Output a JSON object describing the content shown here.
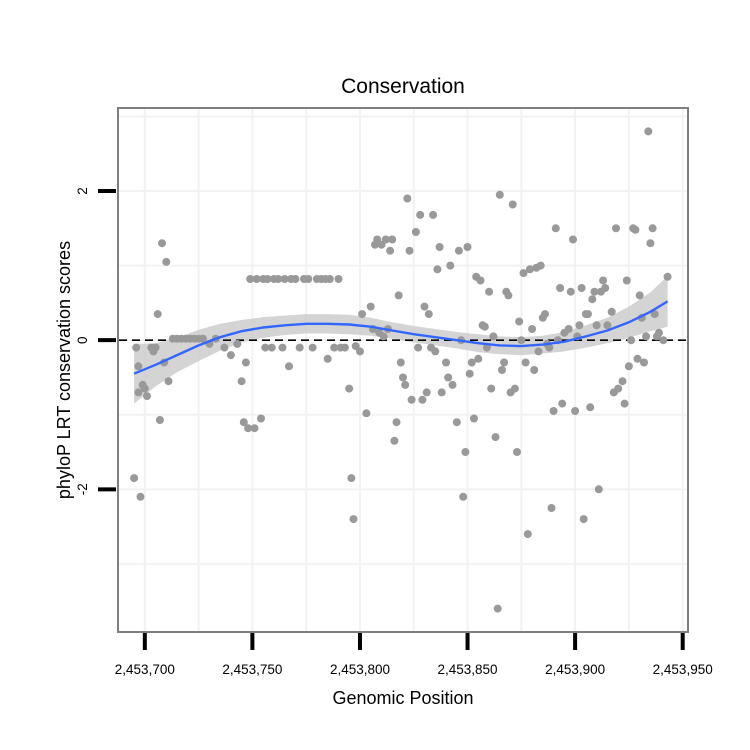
{
  "chart_data": {
    "type": "scatter",
    "title": "Conservation",
    "xlabel": "Genomic Position",
    "ylabel": "phyloP LRT conservation scores",
    "xlim": [
      2453688,
      2453952
    ],
    "ylim": [
      -3.9,
      3.1
    ],
    "xticks": [
      2453700,
      2453750,
      2453800,
      2453850,
      2453900,
      2453950
    ],
    "xtick_labels": [
      "2,453,700",
      "2,453,750",
      "2,453,800",
      "2,453,850",
      "2,453,900",
      "2,453,950"
    ],
    "yticks": [
      -2,
      0,
      2
    ],
    "ytick_labels": [
      "-2",
      "0",
      "2"
    ],
    "grid": true,
    "reference_line": {
      "y": 0,
      "style": "dashed"
    },
    "colors": {
      "points": "#999999",
      "smooth": "#3366FF",
      "ribbon": "#CCCCCC",
      "grid": "#F2F2F2",
      "border": "#7F7F7F"
    },
    "points": [
      [
        2453695,
        -1.85
      ],
      [
        2453696,
        -0.1
      ],
      [
        2453697,
        -0.35
      ],
      [
        2453697,
        -0.7
      ],
      [
        2453698,
        -2.1
      ],
      [
        2453699,
        -0.6
      ],
      [
        2453700,
        -0.65
      ],
      [
        2453701,
        -0.75
      ],
      [
        2453703,
        -0.1
      ],
      [
        2453704,
        -0.15
      ],
      [
        2453705,
        -0.1
      ],
      [
        2453706,
        0.35
      ],
      [
        2453707,
        -1.07
      ],
      [
        2453708,
        1.3
      ],
      [
        2453709,
        -0.3
      ],
      [
        2453710,
        1.05
      ],
      [
        2453711,
        -0.55
      ],
      [
        2453713,
        0.02
      ],
      [
        2453715,
        0.02
      ],
      [
        2453717,
        0.02
      ],
      [
        2453719,
        0.02
      ],
      [
        2453721,
        0.02
      ],
      [
        2453723,
        0.02
      ],
      [
        2453725,
        0.02
      ],
      [
        2453727,
        0.02
      ],
      [
        2453730,
        -0.05
      ],
      [
        2453733,
        0.02
      ],
      [
        2453737,
        -0.1
      ],
      [
        2453740,
        -0.2
      ],
      [
        2453743,
        -0.05
      ],
      [
        2453745,
        -0.55
      ],
      [
        2453746,
        -1.1
      ],
      [
        2453747,
        -0.3
      ],
      [
        2453748,
        -1.18
      ],
      [
        2453749,
        0.82
      ],
      [
        2453751,
        -1.18
      ],
      [
        2453752,
        0.82
      ],
      [
        2453754,
        -1.05
      ],
      [
        2453755,
        0.82
      ],
      [
        2453756,
        -0.1
      ],
      [
        2453757,
        0.82
      ],
      [
        2453759,
        -0.1
      ],
      [
        2453760,
        0.82
      ],
      [
        2453762,
        0.82
      ],
      [
        2453764,
        -0.1
      ],
      [
        2453765,
        0.82
      ],
      [
        2453767,
        -0.35
      ],
      [
        2453768,
        0.82
      ],
      [
        2453770,
        0.82
      ],
      [
        2453772,
        -0.1
      ],
      [
        2453774,
        0.82
      ],
      [
        2453776,
        0.82
      ],
      [
        2453778,
        -0.1
      ],
      [
        2453780,
        0.82
      ],
      [
        2453782,
        0.82
      ],
      [
        2453784,
        0.82
      ],
      [
        2453785,
        -0.25
      ],
      [
        2453786,
        0.82
      ],
      [
        2453788,
        -0.1
      ],
      [
        2453790,
        0.82
      ],
      [
        2453791,
        -0.1
      ],
      [
        2453793,
        -0.1
      ],
      [
        2453795,
        -0.65
      ],
      [
        2453796,
        -1.85
      ],
      [
        2453797,
        -2.4
      ],
      [
        2453798,
        -0.08
      ],
      [
        2453800,
        -0.15
      ],
      [
        2453801,
        0.35
      ],
      [
        2453803,
        -0.98
      ],
      [
        2453805,
        0.45
      ],
      [
        2453806,
        0.15
      ],
      [
        2453807,
        1.28
      ],
      [
        2453808,
        1.35
      ],
      [
        2453809,
        0.1
      ],
      [
        2453810,
        1.28
      ],
      [
        2453811,
        0.05
      ],
      [
        2453812,
        1.35
      ],
      [
        2453813,
        0.15
      ],
      [
        2453814,
        1.2
      ],
      [
        2453815,
        1.35
      ],
      [
        2453816,
        -1.35
      ],
      [
        2453817,
        -1.1
      ],
      [
        2453818,
        0.6
      ],
      [
        2453819,
        -0.3
      ],
      [
        2453820,
        -0.5
      ],
      [
        2453821,
        -0.6
      ],
      [
        2453822,
        1.9
      ],
      [
        2453823,
        1.2
      ],
      [
        2453824,
        -0.8
      ],
      [
        2453826,
        1.45
      ],
      [
        2453827,
        -0.1
      ],
      [
        2453828,
        1.68
      ],
      [
        2453829,
        -0.8
      ],
      [
        2453830,
        0.45
      ],
      [
        2453831,
        -0.7
      ],
      [
        2453832,
        0.35
      ],
      [
        2453833,
        -0.1
      ],
      [
        2453834,
        1.68
      ],
      [
        2453835,
        -0.15
      ],
      [
        2453836,
        0.95
      ],
      [
        2453837,
        1.25
      ],
      [
        2453838,
        -0.7
      ],
      [
        2453840,
        -0.3
      ],
      [
        2453841,
        -0.5
      ],
      [
        2453842,
        1.0
      ],
      [
        2453843,
        -0.6
      ],
      [
        2453845,
        -1.1
      ],
      [
        2453846,
        1.2
      ],
      [
        2453847,
        0.0
      ],
      [
        2453848,
        -2.1
      ],
      [
        2453849,
        -1.5
      ],
      [
        2453850,
        1.25
      ],
      [
        2453851,
        -0.45
      ],
      [
        2453852,
        -0.3
      ],
      [
        2453853,
        -1.05
      ],
      [
        2453854,
        0.85
      ],
      [
        2453855,
        -0.25
      ],
      [
        2453856,
        0.8
      ],
      [
        2453857,
        0.2
      ],
      [
        2453858,
        0.18
      ],
      [
        2453859,
        -0.1
      ],
      [
        2453860,
        0.65
      ],
      [
        2453861,
        -0.65
      ],
      [
        2453862,
        0.05
      ],
      [
        2453863,
        -1.3
      ],
      [
        2453864,
        -3.6
      ],
      [
        2453865,
        1.95
      ],
      [
        2453866,
        -0.4
      ],
      [
        2453867,
        -0.3
      ],
      [
        2453868,
        0.65
      ],
      [
        2453869,
        0.6
      ],
      [
        2453870,
        -0.7
      ],
      [
        2453871,
        1.82
      ],
      [
        2453872,
        -0.65
      ],
      [
        2453873,
        -1.5
      ],
      [
        2453874,
        0.25
      ],
      [
        2453875,
        0.0
      ],
      [
        2453876,
        0.9
      ],
      [
        2453877,
        -0.3
      ],
      [
        2453878,
        -2.6
      ],
      [
        2453879,
        0.95
      ],
      [
        2453880,
        0.15
      ],
      [
        2453881,
        -0.4
      ],
      [
        2453882,
        0.97
      ],
      [
        2453883,
        -0.15
      ],
      [
        2453884,
        1.0
      ],
      [
        2453885,
        0.3
      ],
      [
        2453886,
        0.35
      ],
      [
        2453887,
        -0.05
      ],
      [
        2453888,
        -0.1
      ],
      [
        2453889,
        -2.25
      ],
      [
        2453890,
        -0.95
      ],
      [
        2453891,
        1.5
      ],
      [
        2453892,
        0.0
      ],
      [
        2453893,
        0.7
      ],
      [
        2453894,
        -0.85
      ],
      [
        2453895,
        0.1
      ],
      [
        2453897,
        0.15
      ],
      [
        2453898,
        0.65
      ],
      [
        2453899,
        1.35
      ],
      [
        2453900,
        -0.95
      ],
      [
        2453901,
        0.05
      ],
      [
        2453902,
        0.2
      ],
      [
        2453903,
        0.7
      ],
      [
        2453904,
        -2.4
      ],
      [
        2453905,
        0.35
      ],
      [
        2453906,
        0.35
      ],
      [
        2453907,
        -0.9
      ],
      [
        2453908,
        0.55
      ],
      [
        2453909,
        0.65
      ],
      [
        2453910,
        0.2
      ],
      [
        2453911,
        -2.0
      ],
      [
        2453912,
        0.65
      ],
      [
        2453913,
        0.8
      ],
      [
        2453914,
        0.7
      ],
      [
        2453915,
        0.2
      ],
      [
        2453917,
        0.38
      ],
      [
        2453918,
        -0.7
      ],
      [
        2453919,
        1.5
      ],
      [
        2453920,
        -0.65
      ],
      [
        2453922,
        -0.55
      ],
      [
        2453923,
        -0.85
      ],
      [
        2453924,
        0.8
      ],
      [
        2453925,
        -0.35
      ],
      [
        2453926,
        0.0
      ],
      [
        2453927,
        1.5
      ],
      [
        2453928,
        1.48
      ],
      [
        2453929,
        -0.25
      ],
      [
        2453930,
        0.6
      ],
      [
        2453931,
        0.3
      ],
      [
        2453932,
        -0.3
      ],
      [
        2453933,
        0.05
      ],
      [
        2453934,
        2.8
      ],
      [
        2453935,
        1.3
      ],
      [
        2453936,
        1.5
      ],
      [
        2453937,
        0.35
      ],
      [
        2453938,
        0.05
      ],
      [
        2453939,
        0.1
      ],
      [
        2453941,
        0.0
      ],
      [
        2453943,
        0.85
      ]
    ],
    "smooth": {
      "x": [
        2453695,
        2453705,
        2453715,
        2453725,
        2453735,
        2453745,
        2453755,
        2453765,
        2453775,
        2453785,
        2453795,
        2453805,
        2453815,
        2453825,
        2453835,
        2453845,
        2453855,
        2453865,
        2453875,
        2453885,
        2453895,
        2453905,
        2453915,
        2453925,
        2453935,
        2453943
      ],
      "y": [
        -0.45,
        -0.33,
        -0.2,
        -0.07,
        0.04,
        0.12,
        0.17,
        0.2,
        0.22,
        0.22,
        0.21,
        0.18,
        0.13,
        0.08,
        0.04,
        0.0,
        -0.04,
        -0.07,
        -0.08,
        -0.06,
        -0.02,
        0.05,
        0.13,
        0.24,
        0.38,
        0.52
      ],
      "lower": [
        -0.85,
        -0.62,
        -0.43,
        -0.28,
        -0.14,
        -0.03,
        0.03,
        0.07,
        0.09,
        0.09,
        0.08,
        0.06,
        0.02,
        -0.03,
        -0.07,
        -0.11,
        -0.16,
        -0.19,
        -0.2,
        -0.18,
        -0.15,
        -0.1,
        -0.04,
        0.03,
        0.12,
        0.18
      ],
      "upper": [
        -0.05,
        -0.04,
        0.03,
        0.14,
        0.22,
        0.27,
        0.31,
        0.33,
        0.35,
        0.35,
        0.34,
        0.3,
        0.24,
        0.19,
        0.15,
        0.11,
        0.08,
        0.05,
        0.04,
        0.06,
        0.11,
        0.2,
        0.3,
        0.45,
        0.64,
        0.86
      ]
    }
  }
}
